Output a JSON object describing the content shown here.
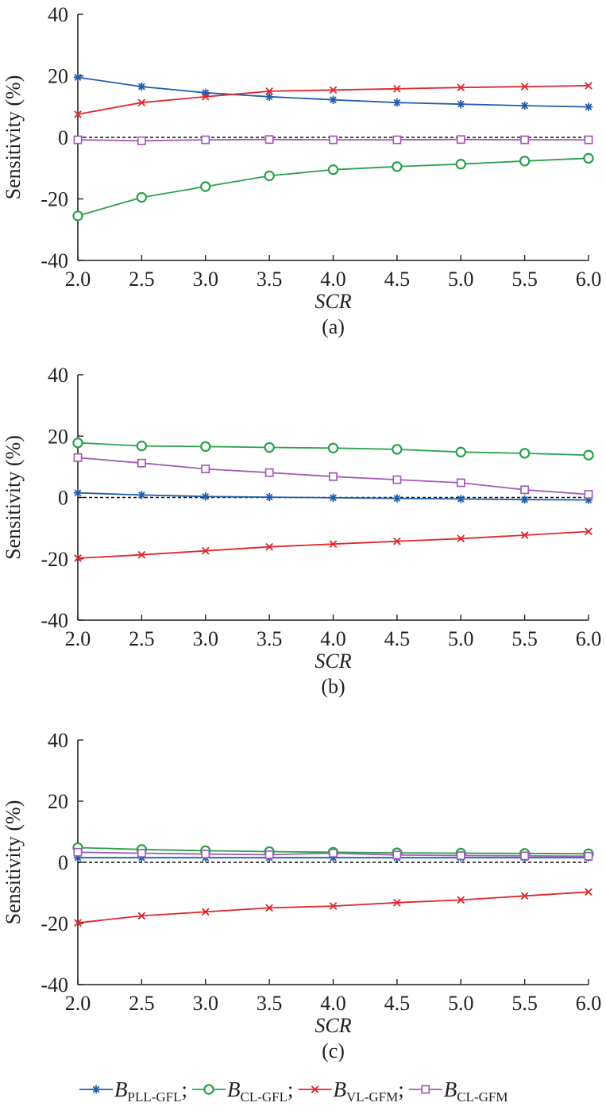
{
  "series_meta": [
    {
      "key": "pll_gfl",
      "name_main": "B",
      "name_sub": "PLL-GFL",
      "separator": ";",
      "color": "#1f5fae",
      "marker": "asterisk"
    },
    {
      "key": "cl_gfl",
      "name_main": "B",
      "name_sub": "CL-GFL",
      "separator": ";",
      "color": "#2aa14a",
      "marker": "circle"
    },
    {
      "key": "vl_gfm",
      "name_main": "B",
      "name_sub": "VL-GFM",
      "separator": ";",
      "color": "#e0262c",
      "marker": "x"
    },
    {
      "key": "cl_gfm",
      "name_main": "B",
      "name_sub": "CL-GFM",
      "separator": "",
      "color": "#a25bb5",
      "marker": "square"
    }
  ],
  "chart_data": [
    {
      "type": "line",
      "panel_label": "(a)",
      "xlabel": "SCR",
      "ylabel": "Sensitivity (%)",
      "x": [
        2.0,
        2.5,
        3.0,
        3.5,
        4.0,
        4.5,
        5.0,
        5.5,
        6.0
      ],
      "x_tick_labels": [
        "2.0",
        "2.5",
        "3.0",
        "3.5",
        "4.0",
        "4.5",
        "5.0",
        "5.5",
        "6.0"
      ],
      "ylim": [
        -40,
        40
      ],
      "y_ticks": [
        40,
        20,
        0,
        -20,
        -40
      ],
      "y_tick_labels": [
        "40",
        "20",
        "0",
        "-20",
        "-40"
      ],
      "reference_line": {
        "y": 0,
        "style": "dashed"
      },
      "series": [
        {
          "key": "pll_gfl",
          "values": [
            19.5,
            16.5,
            14.5,
            13.2,
            12.2,
            11.3,
            10.8,
            10.3,
            9.9
          ]
        },
        {
          "key": "cl_gfl",
          "values": [
            -25.5,
            -19.5,
            -16.0,
            -12.5,
            -10.5,
            -9.5,
            -8.7,
            -7.7,
            -6.8
          ]
        },
        {
          "key": "vl_gfm",
          "values": [
            7.5,
            11.3,
            13.2,
            15.0,
            15.4,
            15.8,
            16.2,
            16.5,
            16.8
          ]
        },
        {
          "key": "cl_gfm",
          "values": [
            -0.8,
            -1.1,
            -0.8,
            -0.7,
            -0.8,
            -0.8,
            -0.7,
            -0.8,
            -0.8
          ]
        }
      ]
    },
    {
      "type": "line",
      "panel_label": "(b)",
      "xlabel": "SCR",
      "ylabel": "Sensitivity (%)",
      "x": [
        2.0,
        2.5,
        3.0,
        3.5,
        4.0,
        4.5,
        5.0,
        5.5,
        6.0
      ],
      "x_tick_labels": [
        "2.0",
        "2.5",
        "3.0",
        "3.5",
        "4.0",
        "4.5",
        "5.0",
        "5.5",
        "6.0"
      ],
      "ylim": [
        -40,
        40
      ],
      "y_ticks": [
        40,
        20,
        0,
        -20,
        -40
      ],
      "y_tick_labels": [
        "40",
        "20",
        "0",
        "-20",
        "-40"
      ],
      "reference_line": {
        "y": 0,
        "style": "dashed"
      },
      "series": [
        {
          "key": "pll_gfl",
          "values": [
            1.5,
            0.8,
            0.3,
            0.1,
            -0.1,
            -0.3,
            -0.5,
            -0.7,
            -0.8
          ]
        },
        {
          "key": "cl_gfl",
          "values": [
            17.8,
            16.8,
            16.6,
            16.3,
            16.1,
            15.7,
            14.8,
            14.4,
            13.8
          ]
        },
        {
          "key": "vl_gfm",
          "values": [
            -19.8,
            -18.7,
            -17.4,
            -16.1,
            -15.2,
            -14.3,
            -13.4,
            -12.3,
            -11.1
          ]
        },
        {
          "key": "cl_gfm",
          "values": [
            13.0,
            11.2,
            9.3,
            8.1,
            6.8,
            5.8,
            4.8,
            2.5,
            1.0
          ]
        }
      ]
    },
    {
      "type": "line",
      "panel_label": "(c)",
      "xlabel": "SCR",
      "ylabel": "Sensitivity (%)",
      "x": [
        2.0,
        2.5,
        3.0,
        3.5,
        4.0,
        4.5,
        5.0,
        5.5,
        6.0
      ],
      "x_tick_labels": [
        "2.0",
        "2.5",
        "3.0",
        "3.5",
        "4.0",
        "4.5",
        "5.0",
        "5.5",
        "6.0"
      ],
      "ylim": [
        -40,
        40
      ],
      "y_ticks": [
        40,
        20,
        0,
        -20,
        -40
      ],
      "y_tick_labels": [
        "40",
        "20",
        "0",
        "-20",
        "-40"
      ],
      "reference_line": {
        "y": 0,
        "style": "dashed"
      },
      "series": [
        {
          "key": "pll_gfl",
          "values": [
            1.5,
            1.5,
            1.5,
            1.5,
            1.5,
            1.5,
            1.5,
            1.5,
            1.5
          ]
        },
        {
          "key": "cl_gfl",
          "values": [
            4.8,
            4.2,
            3.8,
            3.5,
            3.3,
            3.1,
            3.0,
            2.9,
            2.8
          ]
        },
        {
          "key": "vl_gfm",
          "values": [
            -19.8,
            -17.5,
            -16.2,
            -14.9,
            -14.3,
            -13.2,
            -12.3,
            -11.0,
            -9.7
          ]
        },
        {
          "key": "cl_gfm",
          "values": [
            3.3,
            3.0,
            2.7,
            2.5,
            3.0,
            2.4,
            2.2,
            2.1,
            2.0
          ]
        }
      ]
    }
  ]
}
